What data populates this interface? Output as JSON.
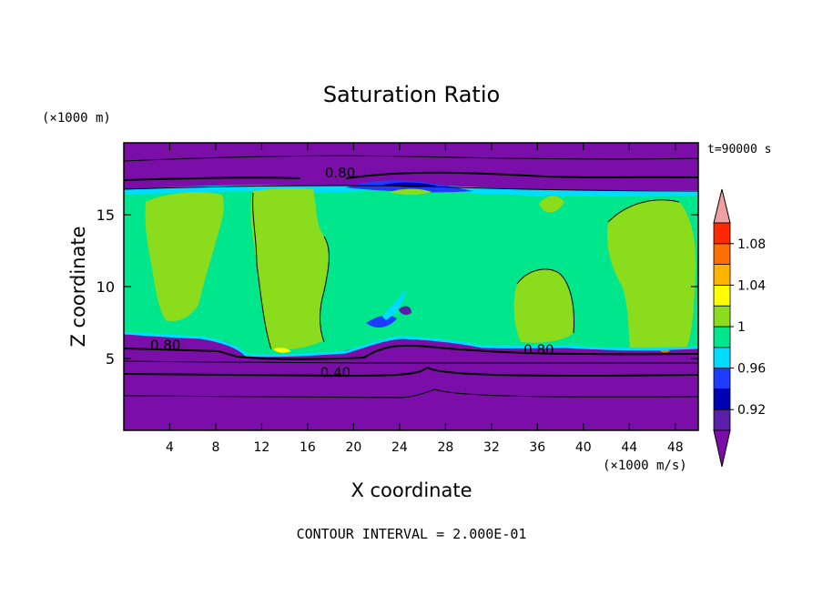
{
  "chart_data": {
    "type": "heatmap",
    "title": "Saturation Ratio",
    "xlabel": "X coordinate",
    "ylabel": "Z coordinate",
    "x_unit": "(×1000 m/s)",
    "y_unit": "(×1000 m)",
    "time_label": "t=90000 s",
    "footer": "CONTOUR INTERVAL = 2.000E-01",
    "xlim": [
      0,
      50
    ],
    "ylim": [
      0,
      20
    ],
    "x_ticks": [
      4,
      8,
      12,
      16,
      20,
      24,
      28,
      32,
      36,
      40,
      44,
      48
    ],
    "x_tick_labels": [
      "4",
      "8",
      "12",
      "16",
      "20",
      "24",
      "28",
      "32",
      "36",
      "40",
      "44",
      "48"
    ],
    "y_ticks": [
      5,
      10,
      15
    ],
    "y_tick_labels": [
      "5",
      "10",
      "15"
    ],
    "colorbar": {
      "levels": [
        0.9,
        0.92,
        0.94,
        0.96,
        0.98,
        1.0,
        1.02,
        1.04,
        1.06,
        1.08,
        1.1
      ],
      "tick_labels": [
        "0.92",
        "0.96",
        "1",
        "1.04",
        "1.08"
      ],
      "tick_values": [
        0.92,
        0.96,
        1.0,
        1.04,
        1.08
      ],
      "colors": [
        "#5a1fa8",
        "#0000b4",
        "#1e3cff",
        "#00dcff",
        "#00e68c",
        "#8cdc1e",
        "#ffff00",
        "#ffb400",
        "#ff6e00",
        "#ff2800"
      ],
      "under_color": "#7b0da8",
      "over_color": "#f0a0a0"
    },
    "contour_labels": [
      {
        "text": "0.80",
        "x": 17.5,
        "y": 17.6
      },
      {
        "text": "0.80",
        "x": 2.3,
        "y": 5.6
      },
      {
        "text": "0.80",
        "x": 34.8,
        "y": 5.3
      },
      {
        "text": "0.40",
        "x": 17.1,
        "y": 3.7
      }
    ]
  },
  "colors": {
    "dry": "#7b0da8",
    "near_saturation": "#00e68c",
    "supersaturated": "#8cdc1e",
    "edge": "#00dcff",
    "deep_blue": "#1e3cff"
  }
}
